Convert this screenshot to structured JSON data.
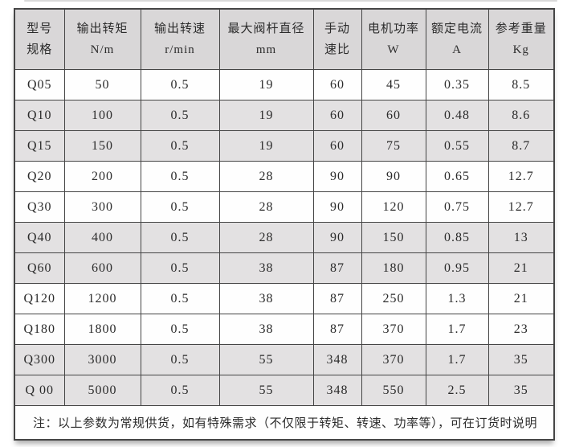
{
  "colors": {
    "header_bg": "#d9d7d8",
    "row_bg": "#fefefe",
    "row_shaded_bg": "#e3e1e2",
    "border": "#454545",
    "text": "#2b2b2b"
  },
  "table": {
    "columns": [
      {
        "key": "model",
        "label": "型号",
        "unit": "规格"
      },
      {
        "key": "torque",
        "label": "输出转矩",
        "unit": "N/m"
      },
      {
        "key": "speed",
        "label": "输出转速",
        "unit": "r/min"
      },
      {
        "key": "stem",
        "label": "最大阀杆直径",
        "unit": "mm"
      },
      {
        "key": "ratio",
        "label": "手动",
        "unit": "速比"
      },
      {
        "key": "power",
        "label": "电机功率",
        "unit": "W"
      },
      {
        "key": "current",
        "label": "额定电流",
        "unit": "A"
      },
      {
        "key": "weight",
        "label": "参考重量",
        "unit": "Kg"
      }
    ],
    "rows": [
      {
        "shaded": false,
        "cells": [
          "Q05",
          "50",
          "0.5",
          "19",
          "60",
          "45",
          "0.35",
          "8.5"
        ]
      },
      {
        "shaded": true,
        "cells": [
          "Q10",
          "100",
          "0.5",
          "19",
          "60",
          "60",
          "0.48",
          "8.6"
        ]
      },
      {
        "shaded": true,
        "cells": [
          "Q15",
          "150",
          "0.5",
          "19",
          "60",
          "75",
          "0.55",
          "8.7"
        ]
      },
      {
        "shaded": false,
        "cells": [
          "Q20",
          "200",
          "0.5",
          "28",
          "90",
          "90",
          "0.65",
          "12.7"
        ]
      },
      {
        "shaded": false,
        "cells": [
          "Q30",
          "300",
          "0.5",
          "28",
          "90",
          "120",
          "0.75",
          "12.7"
        ]
      },
      {
        "shaded": true,
        "cells": [
          "Q40",
          "400",
          "0.5",
          "28",
          "90",
          "150",
          "0.85",
          "13"
        ]
      },
      {
        "shaded": true,
        "cells": [
          "Q60",
          "600",
          "0.5",
          "38",
          "87",
          "180",
          "0.95",
          "21"
        ]
      },
      {
        "shaded": false,
        "cells": [
          "Q120",
          "1200",
          "0.5",
          "38",
          "87",
          "250",
          "1.3",
          "21"
        ]
      },
      {
        "shaded": false,
        "cells": [
          "Q180",
          "1800",
          "0.5",
          "38",
          "87",
          "370",
          "1.7",
          "23"
        ]
      },
      {
        "shaded": true,
        "cells": [
          "Q300",
          "3000",
          "0.5",
          "55",
          "348",
          "370",
          "1.7",
          "35"
        ]
      },
      {
        "shaded": true,
        "cells": [
          "Q 00",
          "5000",
          "0.5",
          "55",
          "348",
          "550",
          "2.5",
          "35"
        ]
      }
    ],
    "note": "注：以上参数为常规供货，如有特殊需求（不仅限于转矩、转速、功率等），可在订货时说明"
  }
}
